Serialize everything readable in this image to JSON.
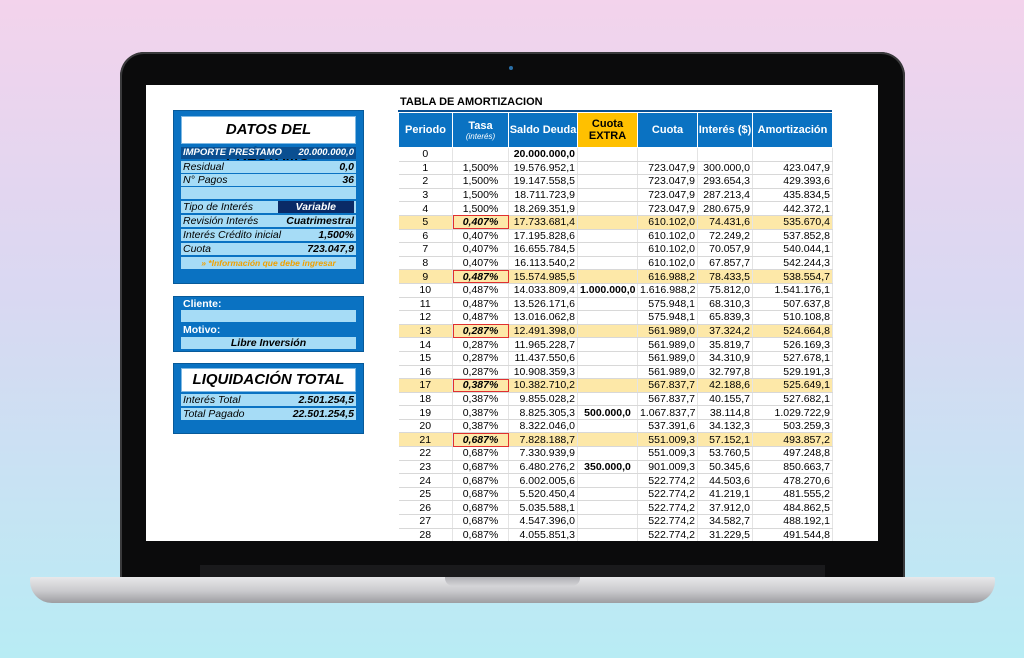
{
  "loan": {
    "title": "DATOS DEL PRÉSTAMO",
    "amount": {
      "label": "IMPORTE PRESTAMO",
      "value": "20.000.000,0"
    },
    "fields": [
      {
        "label": "Residual",
        "value": "0,0"
      },
      {
        "label": "N° Pagos",
        "value": "36"
      }
    ],
    "rate_fields": [
      {
        "label": "Tipo de Interés",
        "value": "Variable"
      },
      {
        "label": "Revisión Interés",
        "value": "Cuatrimestral"
      },
      {
        "label": "Interés Crédito inicial",
        "value": "1,500%"
      },
      {
        "label": "Cuota",
        "value": "723.047,9"
      }
    ],
    "note": "» *Información que debe ingresar"
  },
  "client": {
    "client_label": "Cliente:",
    "reason_label": "Motivo:",
    "reason": "Libre Inversión"
  },
  "liquidation": {
    "title": "LIQUIDACIÓN TOTAL",
    "fields": [
      {
        "label": "Interés Total",
        "value": "2.501.254,5"
      },
      {
        "label": "Total Pagado",
        "value": "22.501.254,5"
      }
    ]
  },
  "table": {
    "title": "TABLA DE AMORTIZACION",
    "headers": [
      {
        "label": "Periodo"
      },
      {
        "label": "Tasa",
        "sub": "(interés)"
      },
      {
        "label": "Saldo Deuda"
      },
      {
        "label": "Cuota",
        "sub": "EXTRA"
      },
      {
        "label": "Cuota"
      },
      {
        "label": "Interés ($)"
      },
      {
        "label": "Amortización"
      }
    ],
    "rows": [
      [
        0,
        null,
        "20.000.000,0",
        null,
        null,
        null,
        null
      ],
      [
        1,
        "1,500%",
        "19.576.952,1",
        null,
        "723.047,9",
        "300.000,0",
        "423.047,9"
      ],
      [
        2,
        "1,500%",
        "19.147.558,5",
        null,
        "723.047,9",
        "293.654,3",
        "429.393,6"
      ],
      [
        3,
        "1,500%",
        "18.711.723,9",
        null,
        "723.047,9",
        "287.213,4",
        "435.834,5"
      ],
      [
        4,
        "1,500%",
        "18.269.351,9",
        null,
        "723.047,9",
        "280.675,9",
        "442.372,1"
      ],
      [
        5,
        "0,407%",
        "17.733.681,4",
        null,
        "610.102,0",
        "74.431,6",
        "535.670,4"
      ],
      [
        6,
        "0,407%",
        "17.195.828,6",
        null,
        "610.102,0",
        "72.249,2",
        "537.852,8"
      ],
      [
        7,
        "0,407%",
        "16.655.784,5",
        null,
        "610.102,0",
        "70.057,9",
        "540.044,1"
      ],
      [
        8,
        "0,407%",
        "16.113.540,2",
        null,
        "610.102,0",
        "67.857,7",
        "542.244,3"
      ],
      [
        9,
        "0,487%",
        "15.574.985,5",
        null,
        "616.988,2",
        "78.433,5",
        "538.554,7"
      ],
      [
        10,
        "0,487%",
        "14.033.809,4",
        "1.000.000,0",
        "1.616.988,2",
        "75.812,0",
        "1.541.176,1"
      ],
      [
        11,
        "0,487%",
        "13.526.171,6",
        null,
        "575.948,1",
        "68.310,3",
        "507.637,8"
      ],
      [
        12,
        "0,487%",
        "13.016.062,8",
        null,
        "575.948,1",
        "65.839,3",
        "510.108,8"
      ],
      [
        13,
        "0,287%",
        "12.491.398,0",
        null,
        "561.989,0",
        "37.324,2",
        "524.664,8"
      ],
      [
        14,
        "0,287%",
        "11.965.228,7",
        null,
        "561.989,0",
        "35.819,7",
        "526.169,3"
      ],
      [
        15,
        "0,287%",
        "11.437.550,6",
        null,
        "561.989,0",
        "34.310,9",
        "527.678,1"
      ],
      [
        16,
        "0,287%",
        "10.908.359,3",
        null,
        "561.989,0",
        "32.797,8",
        "529.191,3"
      ],
      [
        17,
        "0,387%",
        "10.382.710,2",
        null,
        "567.837,7",
        "42.188,6",
        "525.649,1"
      ],
      [
        18,
        "0,387%",
        "9.855.028,2",
        null,
        "567.837,7",
        "40.155,7",
        "527.682,1"
      ],
      [
        19,
        "0,387%",
        "8.825.305,3",
        "500.000,0",
        "1.067.837,7",
        "38.114,8",
        "1.029.722,9"
      ],
      [
        20,
        "0,387%",
        "8.322.046,0",
        null,
        "537.391,6",
        "34.132,3",
        "503.259,3"
      ],
      [
        21,
        "0,687%",
        "7.828.188,7",
        null,
        "551.009,3",
        "57.152,1",
        "493.857,2"
      ],
      [
        22,
        "0,687%",
        "7.330.939,9",
        null,
        "551.009,3",
        "53.760,5",
        "497.248,8"
      ],
      [
        23,
        "0,687%",
        "6.480.276,2",
        "350.000,0",
        "901.009,3",
        "50.345,6",
        "850.663,7"
      ],
      [
        24,
        "0,687%",
        "6.002.005,6",
        null,
        "522.774,2",
        "44.503,6",
        "478.270,6"
      ],
      [
        25,
        "0,687%",
        "5.520.450,4",
        null,
        "522.774,2",
        "41.219,1",
        "481.555,2"
      ],
      [
        26,
        "0,687%",
        "5.035.588,1",
        null,
        "522.774,2",
        "37.912,0",
        "484.862,5"
      ],
      [
        27,
        "0,687%",
        "4.547.396,0",
        null,
        "522.774,2",
        "34.582,7",
        "488.192,1"
      ],
      [
        28,
        "0,687%",
        "4.055.851,3",
        null,
        "522.774,2",
        "31.229,5",
        "491.544,8"
      ]
    ]
  }
}
